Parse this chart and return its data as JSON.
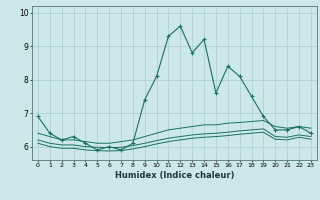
{
  "xlabel": "Humidex (Indice chaleur)",
  "x": [
    0,
    1,
    2,
    3,
    4,
    5,
    6,
    7,
    8,
    9,
    10,
    11,
    12,
    13,
    14,
    15,
    16,
    17,
    18,
    19,
    20,
    21,
    22,
    23
  ],
  "line1": [
    6.9,
    6.4,
    6.2,
    6.3,
    6.1,
    5.9,
    6.0,
    5.9,
    6.1,
    7.4,
    8.1,
    9.3,
    9.6,
    8.8,
    9.2,
    7.6,
    8.4,
    8.1,
    7.5,
    6.9,
    6.5,
    6.5,
    6.6,
    6.4
  ],
  "line2": [
    6.4,
    6.3,
    6.2,
    6.2,
    6.15,
    6.1,
    6.1,
    6.15,
    6.2,
    6.3,
    6.4,
    6.5,
    6.55,
    6.6,
    6.65,
    6.65,
    6.7,
    6.72,
    6.75,
    6.78,
    6.6,
    6.55,
    6.6,
    6.55
  ],
  "line3": [
    6.2,
    6.1,
    6.05,
    6.05,
    6.0,
    5.98,
    5.97,
    5.98,
    6.03,
    6.1,
    6.18,
    6.25,
    6.3,
    6.35,
    6.38,
    6.4,
    6.43,
    6.47,
    6.5,
    6.53,
    6.3,
    6.28,
    6.35,
    6.3
  ],
  "line4": [
    6.1,
    6.0,
    5.95,
    5.95,
    5.9,
    5.88,
    5.87,
    5.88,
    5.93,
    6.0,
    6.08,
    6.15,
    6.2,
    6.25,
    6.28,
    6.3,
    6.33,
    6.37,
    6.4,
    6.43,
    6.22,
    6.2,
    6.28,
    6.22
  ],
  "bg_color": "#cce8e8",
  "grid_color": "#aacece",
  "line_color": "#1a7060",
  "ylim": [
    5.6,
    10.2
  ],
  "yticks": [
    6,
    7,
    8,
    9,
    10
  ],
  "xticks": [
    0,
    1,
    2,
    3,
    4,
    5,
    6,
    7,
    8,
    9,
    10,
    11,
    12,
    13,
    14,
    15,
    16,
    17,
    18,
    19,
    20,
    21,
    22,
    23
  ]
}
